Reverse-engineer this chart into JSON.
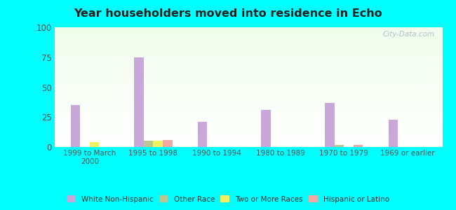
{
  "title": "Year householders moved into residence in Echo",
  "categories": [
    "1999 to March\n2000",
    "1995 to 1998",
    "1990 to 1994",
    "1980 to 1989",
    "1970 to 1979",
    "1969 or earlier"
  ],
  "series": {
    "White Non-Hispanic": [
      35,
      75,
      21,
      31,
      37,
      23
    ],
    "Other Race": [
      0,
      5,
      0,
      0,
      2,
      0
    ],
    "Two or More Races": [
      4,
      5,
      0,
      0,
      0,
      0
    ],
    "Hispanic or Latino": [
      0,
      6,
      0,
      0,
      2,
      0
    ]
  },
  "colors": {
    "White Non-Hispanic": "#c8a8d8",
    "Other Race": "#b8c890",
    "Two or More Races": "#f0f060",
    "Hispanic or Latino": "#f0a8a0"
  },
  "ylim": [
    0,
    100
  ],
  "yticks": [
    0,
    25,
    50,
    75,
    100
  ],
  "bar_width": 0.15,
  "outer_bg": "#00ffff",
  "watermark": "City-Data.com",
  "legend_labels": [
    "White Non-Hispanic",
    "Other Race",
    "Two or More Races",
    "Hispanic or Latino"
  ]
}
